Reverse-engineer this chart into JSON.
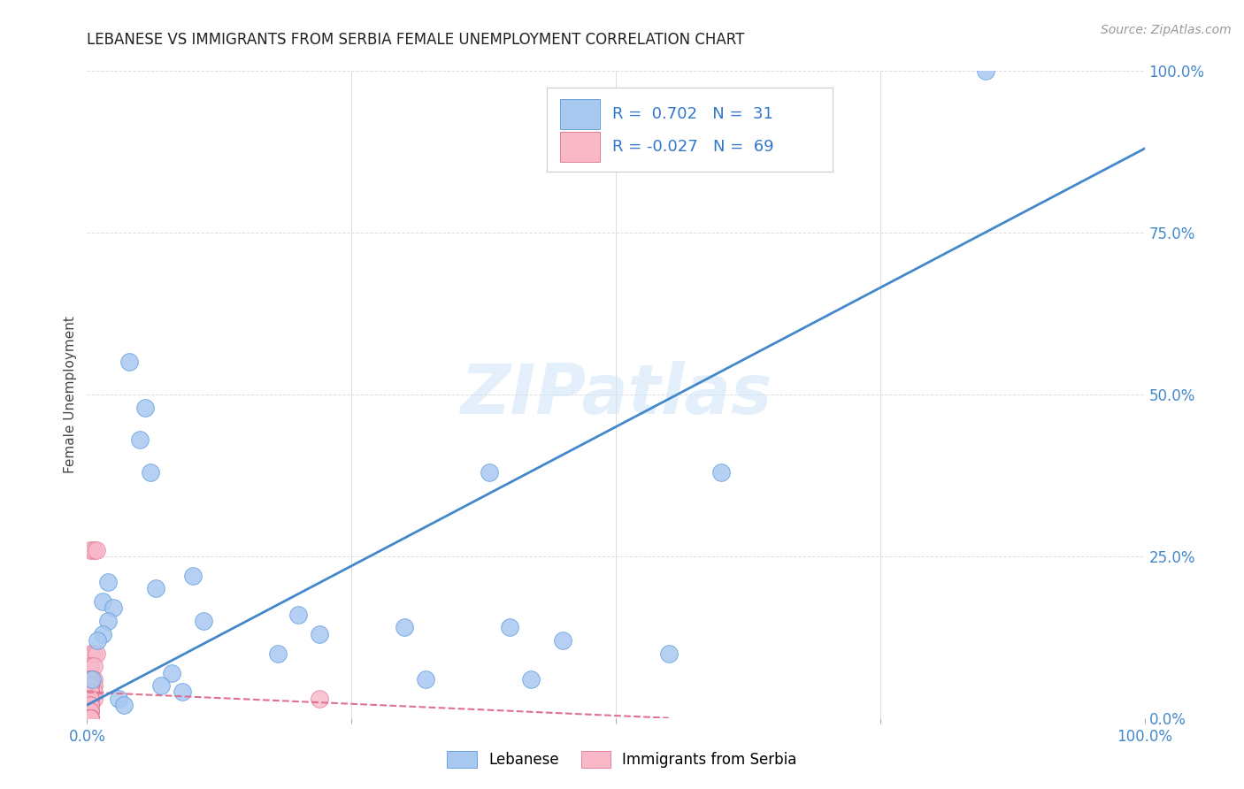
{
  "title": "LEBANESE VS IMMIGRANTS FROM SERBIA FEMALE UNEMPLOYMENT CORRELATION CHART",
  "source": "Source: ZipAtlas.com",
  "ylabel": "Female Unemployment",
  "watermark": "ZIPatlas",
  "xlim": [
    0.0,
    1.0
  ],
  "ylim": [
    0.0,
    1.0
  ],
  "xtick_positions": [
    0.0,
    0.25,
    0.5,
    0.75,
    1.0
  ],
  "xtick_labels": [
    "0.0%",
    "",
    "",
    "",
    "100.0%"
  ],
  "ytick_positions": [
    0.0,
    0.25,
    0.5,
    0.75,
    1.0
  ],
  "ytick_labels_right": [
    "0.0%",
    "25.0%",
    "50.0%",
    "75.0%",
    "100.0%"
  ],
  "legend_blue_r": "0.702",
  "legend_blue_n": "31",
  "legend_pink_r": "-0.027",
  "legend_pink_n": "69",
  "legend_label_blue": "Lebanese",
  "legend_label_pink": "Immigrants from Serbia",
  "blue_color": "#a8c8f0",
  "blue_edge_color": "#5599dd",
  "blue_line_color": "#4488cc",
  "pink_color": "#f8b8c8",
  "pink_edge_color": "#e07090",
  "pink_line_color": "#e07090",
  "blue_scatter_x": [
    0.85,
    0.04,
    0.055,
    0.05,
    0.02,
    0.015,
    0.025,
    0.02,
    0.015,
    0.01,
    0.005,
    0.1,
    0.2,
    0.22,
    0.3,
    0.4,
    0.42,
    0.55,
    0.08,
    0.07,
    0.03,
    0.035,
    0.06,
    0.065,
    0.09,
    0.11,
    0.18,
    0.32,
    0.38,
    0.45,
    0.6
  ],
  "blue_scatter_y": [
    1.0,
    0.55,
    0.48,
    0.43,
    0.21,
    0.18,
    0.17,
    0.15,
    0.13,
    0.12,
    0.06,
    0.22,
    0.16,
    0.13,
    0.14,
    0.14,
    0.06,
    0.1,
    0.07,
    0.05,
    0.03,
    0.02,
    0.38,
    0.2,
    0.04,
    0.15,
    0.1,
    0.06,
    0.38,
    0.12,
    0.38
  ],
  "pink_scatter_x": [
    0.003,
    0.006,
    0.009,
    0.003,
    0.006,
    0.009,
    0.003,
    0.006,
    0.003,
    0.006,
    0.003,
    0.006,
    0.003,
    0.006,
    0.003,
    0.003,
    0.006,
    0.003,
    0.003,
    0.003,
    0.003,
    0.003,
    0.003,
    0.003,
    0.003,
    0.003,
    0.003,
    0.003,
    0.22,
    0.003,
    0.003,
    0.003,
    0.003,
    0.003,
    0.003,
    0.003,
    0.003,
    0.003,
    0.003,
    0.003,
    0.003,
    0.003,
    0.003,
    0.003,
    0.003,
    0.003,
    0.003,
    0.003,
    0.003,
    0.003,
    0.003,
    0.003,
    0.003,
    0.003,
    0.003,
    0.003,
    0.003,
    0.003,
    0.003,
    0.003,
    0.003,
    0.003,
    0.003,
    0.003,
    0.003,
    0.003,
    0.003,
    0.003,
    0.003
  ],
  "pink_scatter_y": [
    0.26,
    0.26,
    0.26,
    0.1,
    0.1,
    0.1,
    0.08,
    0.08,
    0.06,
    0.06,
    0.05,
    0.05,
    0.04,
    0.04,
    0.03,
    0.03,
    0.03,
    0.02,
    0.02,
    0.01,
    0.01,
    0.0,
    0.0,
    0.0,
    0.0,
    0.0,
    0.0,
    0.0,
    0.03,
    0.06,
    0.06,
    0.05,
    0.05,
    0.04,
    0.04,
    0.03,
    0.03,
    0.02,
    0.02,
    0.01,
    0.01,
    0.0,
    0.0,
    0.0,
    0.0,
    0.0,
    0.0,
    0.0,
    0.0,
    0.0,
    0.0,
    0.0,
    0.0,
    0.0,
    0.0,
    0.0,
    0.0,
    0.0,
    0.0,
    0.0,
    0.0,
    0.0,
    0.0,
    0.0,
    0.0,
    0.0,
    0.0,
    0.0,
    0.0
  ],
  "blue_line_x0": 0.0,
  "blue_line_y0": 0.02,
  "blue_line_x1": 1.0,
  "blue_line_y1": 0.88,
  "pink_line_x0": 0.0,
  "pink_line_y0": 0.04,
  "pink_line_x1": 0.55,
  "pink_line_y1": 0.0,
  "background_color": "#ffffff",
  "grid_color": "#dddddd"
}
